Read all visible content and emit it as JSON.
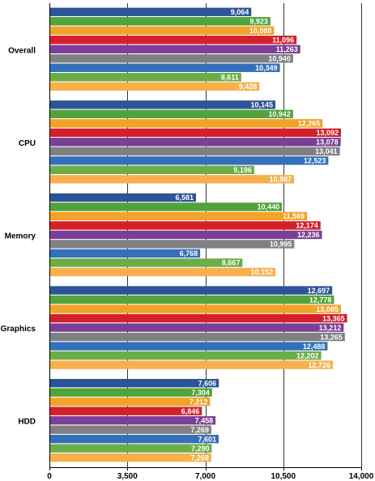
{
  "chart_data": {
    "type": "bar",
    "orientation": "horizontal",
    "categories": [
      "Overall",
      "CPU",
      "Memory",
      "Graphics",
      "HDD"
    ],
    "series": [
      {
        "color": "#2C5597",
        "values": [
          9064,
          10145,
          6581,
          12697,
          7606
        ]
      },
      {
        "color": "#53A33C",
        "values": [
          9923,
          10942,
          10440,
          12778,
          7304
        ]
      },
      {
        "color": "#F2A228",
        "values": [
          10088,
          12265,
          11569,
          13085,
          7212
        ]
      },
      {
        "color": "#D3202B",
        "values": [
          11096,
          13092,
          12174,
          13365,
          6846
        ]
      },
      {
        "color": "#7B3F97",
        "values": [
          11263,
          13078,
          12236,
          13212,
          7458
        ]
      },
      {
        "color": "#808080",
        "values": [
          10940,
          13041,
          10995,
          13265,
          7269
        ]
      },
      {
        "color": "#3470B9",
        "values": [
          10349,
          12523,
          6768,
          12488,
          7601
        ]
      },
      {
        "color": "#6BAE47",
        "values": [
          8611,
          9196,
          8667,
          12202,
          7290
        ]
      },
      {
        "color": "#F7B04D",
        "values": [
          9428,
          10987,
          10152,
          12726,
          7268
        ]
      }
    ],
    "value_labels": [
      [
        "9,064",
        "10,145",
        "6,581",
        "12,697",
        "7,606"
      ],
      [
        "9,923",
        "10,942",
        "10,440",
        "12,778",
        "7,304"
      ],
      [
        "10,088",
        "12,265",
        "11,569",
        "13,085",
        "7,212"
      ],
      [
        "11,096",
        "13,092",
        "12,174",
        "13,365",
        "6,846"
      ],
      [
        "11,263",
        "13,078",
        "12,236",
        "13,212",
        "7,458"
      ],
      [
        "10,940",
        "13,041",
        "10,995",
        "13,265",
        "7,269"
      ],
      [
        "10,349",
        "12,523",
        "6,768",
        "12,488",
        "7,601"
      ],
      [
        "8,611",
        "9,196",
        "8,667",
        "12,202",
        "7,290"
      ],
      [
        "9,428",
        "10,987",
        "10,152",
        "12,726",
        "7,268"
      ]
    ],
    "x_ticks": [
      0,
      3500,
      7000,
      10500,
      14000
    ],
    "x_tick_labels": [
      "0",
      "3,500",
      "7,000",
      "10,500",
      "14,000"
    ],
    "xlim": [
      0,
      14000
    ],
    "grid": true,
    "title": "",
    "xlabel": "",
    "ylabel": ""
  }
}
